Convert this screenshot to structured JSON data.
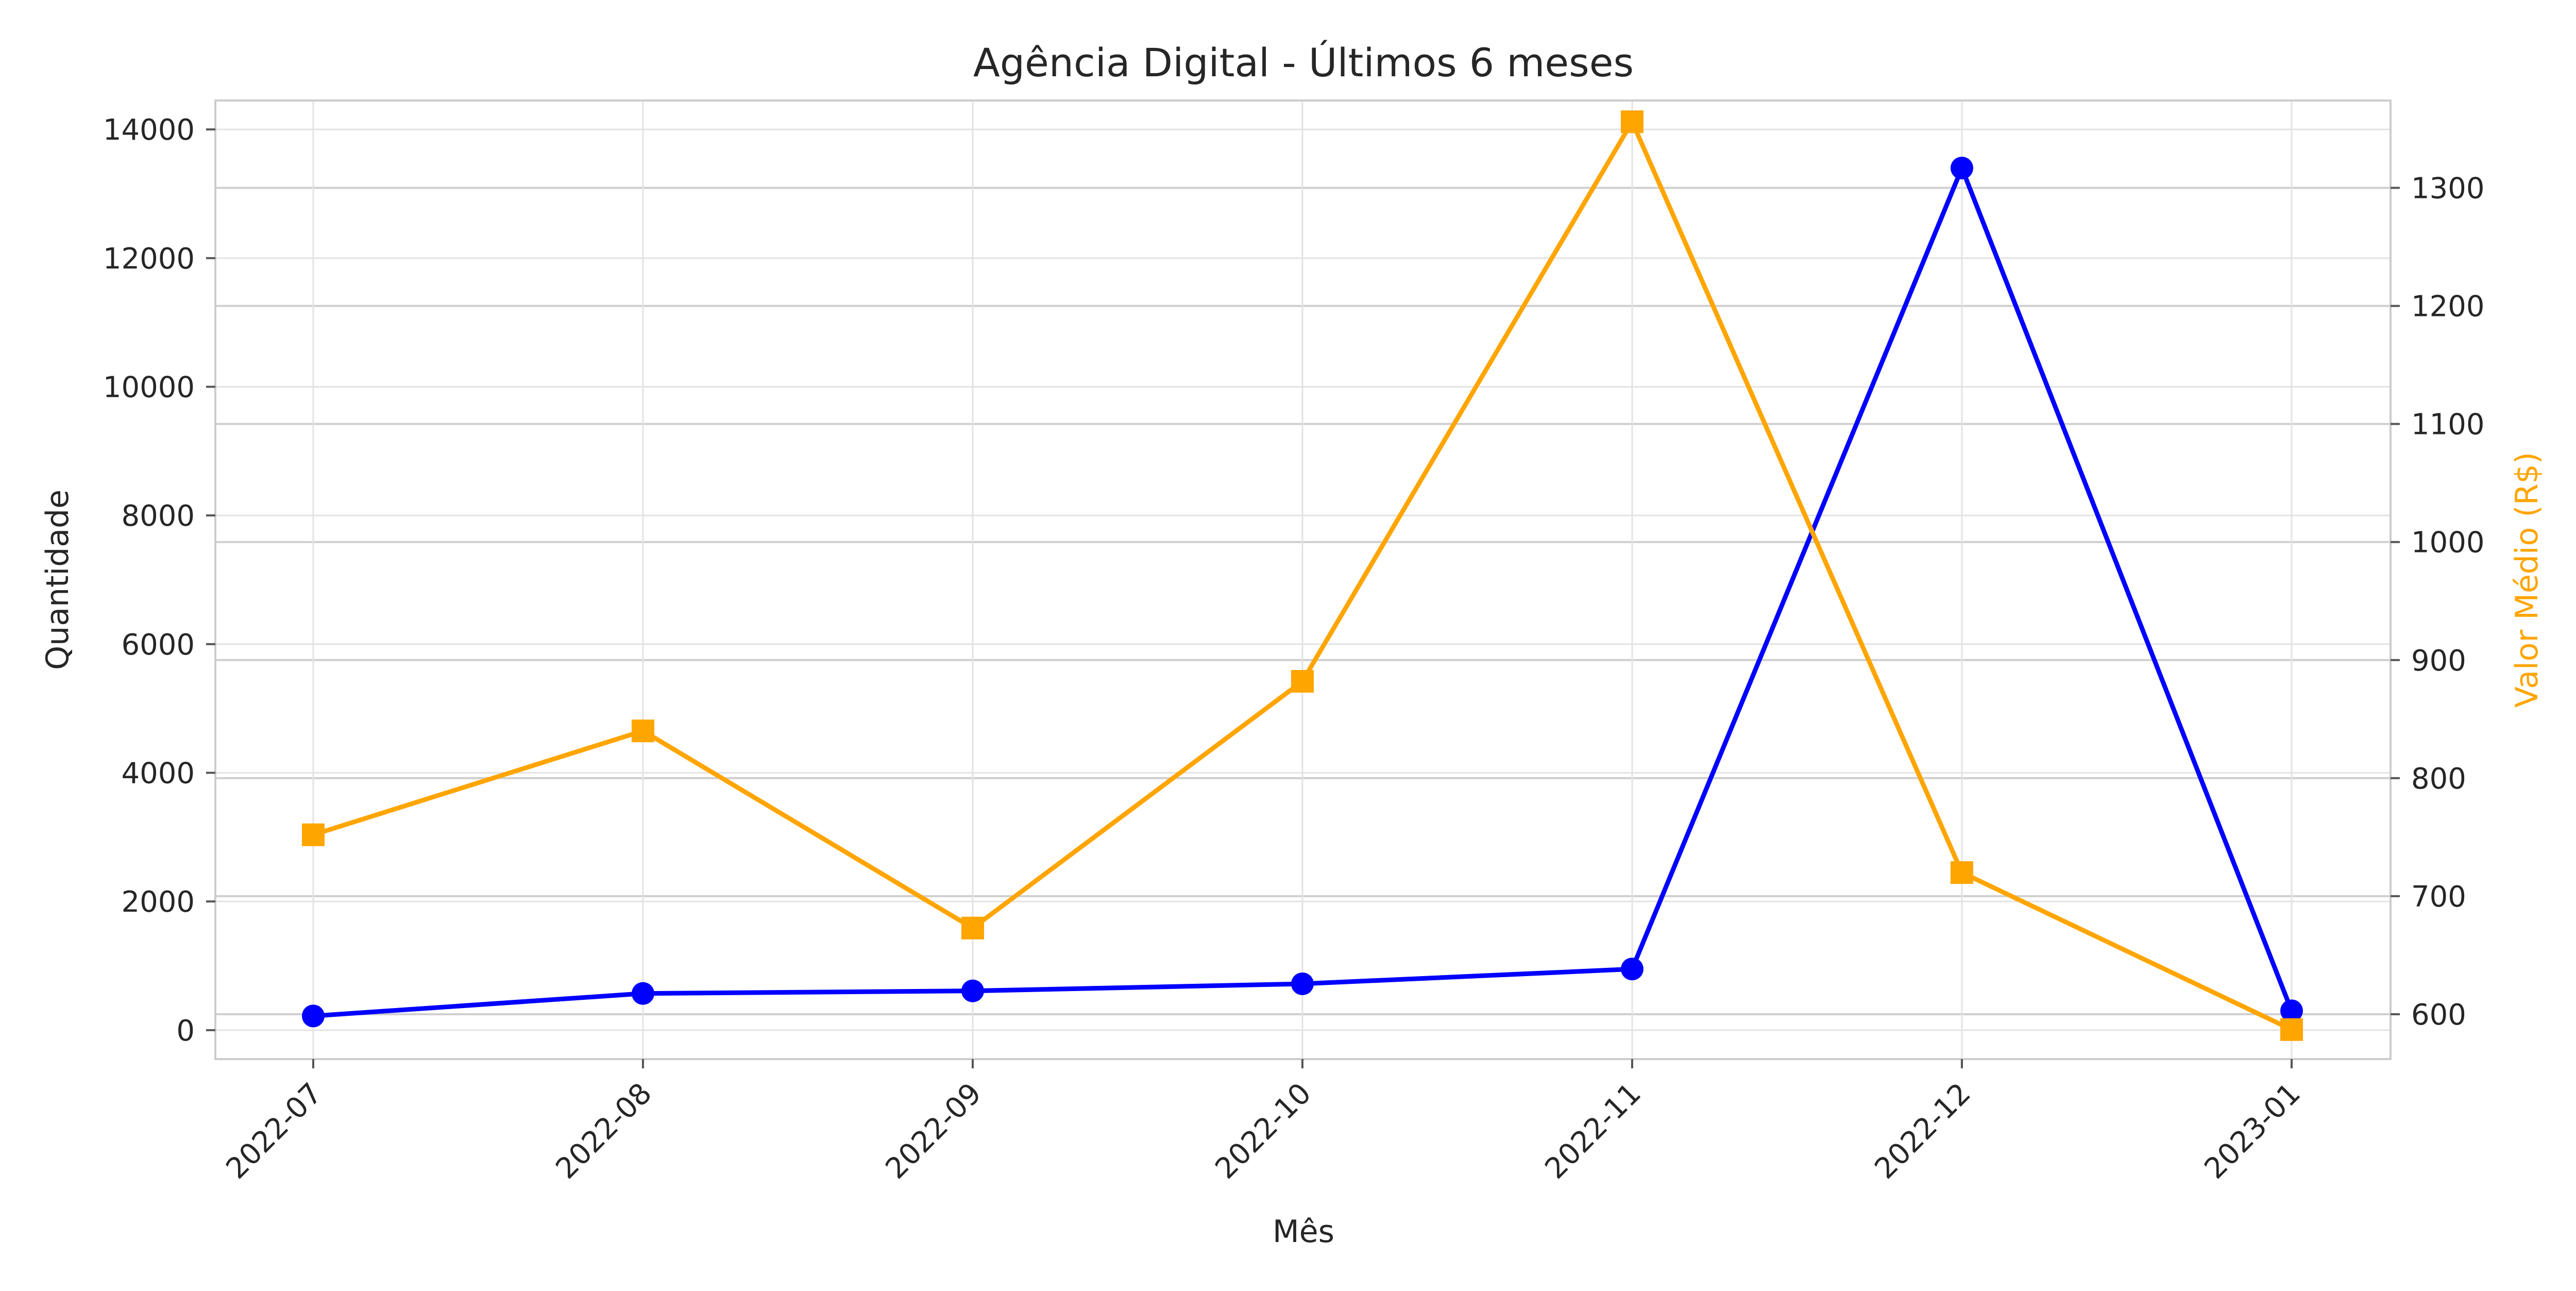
{
  "chart_data": {
    "type": "line",
    "title": "Agência Digital - Últimos 6 meses",
    "xlabel": "Mês",
    "ylabel": "Quantidade",
    "y2label": "Valor Médio (R$)",
    "categories": [
      "2022-07",
      "2022-08",
      "2022-09",
      "2022-10",
      "2022-11",
      "2022-12",
      "2023-01"
    ],
    "ylim": [
      -450,
      14450
    ],
    "yticks": [
      0,
      2000,
      4000,
      6000,
      8000,
      10000,
      12000,
      14000
    ],
    "y2lim": [
      562,
      1374
    ],
    "y2ticks": [
      600,
      700,
      800,
      900,
      1000,
      1100,
      1200,
      1300
    ],
    "grid": true,
    "series": [
      {
        "axis": "left",
        "color": "#0000ff",
        "marker": "circle",
        "values": [
          220,
          570,
          610,
          720,
          950,
          13400,
          300
        ]
      },
      {
        "axis": "right",
        "color": "#ffa500",
        "marker": "square",
        "values": [
          752,
          840,
          673,
          882,
          1356,
          720,
          587
        ]
      }
    ]
  }
}
